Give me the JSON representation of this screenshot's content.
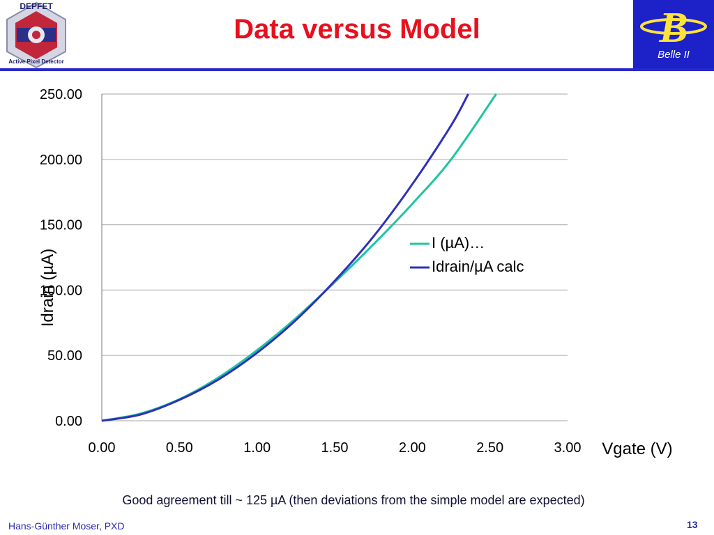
{
  "slide": {
    "title": "Data versus Model",
    "caption": "Good agreement till ~ 125 µA (then deviations from the simple model are expected)",
    "author": "Hans-Günther Moser, PXD",
    "page_number": "13"
  },
  "logos": {
    "left_text_top": "DEPFET",
    "left_text_bottom": "Active Pixel Detector",
    "right_letter": "B",
    "right_text": "Belle II"
  },
  "colors": {
    "title": "#e8101e",
    "rule": "#2929c9",
    "series_data": "#1fc4a0",
    "series_model": "#2e30b8"
  },
  "chart_data": {
    "type": "line",
    "xlabel": "Vgate (V)",
    "ylabel": "Idrain (µA)",
    "xlim": [
      0,
      3
    ],
    "ylim": [
      0,
      250
    ],
    "x_ticks": [
      "0.00",
      "0.50",
      "1.00",
      "1.50",
      "2.00",
      "2.50",
      "3.00"
    ],
    "y_ticks": [
      "0.00",
      "50.00",
      "100.00",
      "150.00",
      "200.00",
      "250.00"
    ],
    "grid": "horizontal",
    "legend_position": "right",
    "series": [
      {
        "name": "I (µA)…",
        "x": [
          0.0,
          0.25,
          0.5,
          0.75,
          1.0,
          1.25,
          1.5,
          1.75,
          2.0,
          2.25,
          2.54
        ],
        "y": [
          0.0,
          5.5,
          16.5,
          33.0,
          54.0,
          78.5,
          106.0,
          135.0,
          166.0,
          200.0,
          250.0
        ]
      },
      {
        "name": "Idrain/µA calc",
        "x": [
          0.0,
          0.25,
          0.5,
          0.75,
          1.0,
          1.25,
          1.5,
          1.75,
          2.0,
          2.25,
          2.36
        ],
        "y": [
          0.0,
          4.8,
          16.0,
          31.5,
          52.0,
          77.0,
          107.0,
          141.0,
          181.0,
          226.0,
          250.0
        ]
      }
    ]
  }
}
